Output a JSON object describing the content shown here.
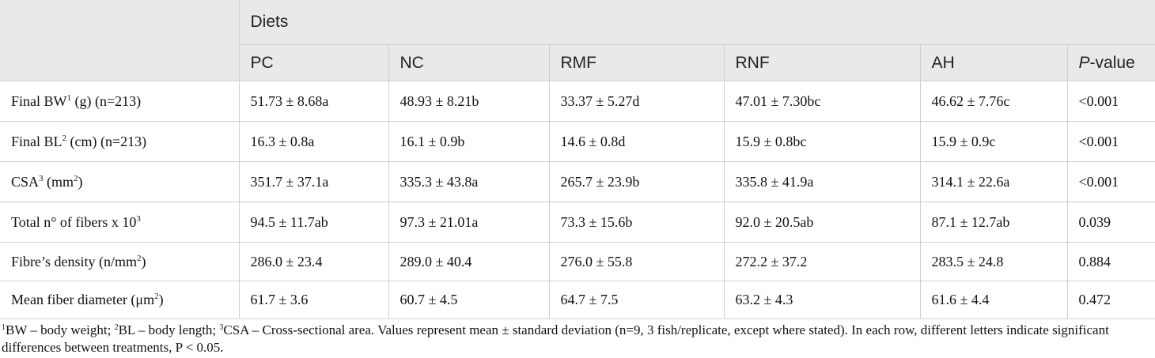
{
  "header": {
    "group_label": "Diets",
    "columns": [
      "PC",
      "NC",
      "RMF",
      "RNF",
      "AH"
    ],
    "pvalue_prefix": "P",
    "pvalue_suffix": "-value"
  },
  "rows": [
    {
      "label_pre": "Final BW",
      "sup": "1",
      "label_post": " (g) (n=213)",
      "values": [
        "51.73 ± 8.68a",
        "48.93 ± 8.21b",
        "33.37 ± 5.27d",
        "47.01 ± 7.30bc",
        "46.62 ± 7.76c",
        "<0.001"
      ]
    },
    {
      "label_pre": "Final BL",
      "sup": "2",
      "label_post": " (cm) (n=213)",
      "values": [
        "16.3 ± 0.8a",
        "16.1 ± 0.9b",
        "14.6 ± 0.8d",
        "15.9 ± 0.8bc",
        "15.9 ± 0.9c",
        "<0.001"
      ]
    },
    {
      "label_pre": "CSA",
      "sup": "3",
      "label_post": " (mm",
      "sup2": "2",
      "label_end": ")",
      "values": [
        "351.7 ± 37.1a",
        "335.3 ± 43.8a",
        "265.7 ± 23.9b",
        "335.8 ± 41.9a",
        "314.1 ± 22.6a",
        "<0.001"
      ]
    },
    {
      "label_pre": "Total n° of fibers x 10",
      "sup": "3",
      "label_post": "",
      "values": [
        "94.5 ± 11.7ab",
        "97.3 ± 21.01a",
        "73.3 ± 15.6b",
        "92.0 ± 20.5ab",
        "87.1 ± 12.7ab",
        "0.039"
      ]
    },
    {
      "label_pre": "Fibre’s density (n/mm",
      "sup": "2",
      "label_post": ")",
      "values": [
        "286.0 ± 23.4",
        "289.0 ± 40.4",
        "276.0 ± 55.8",
        "272.2 ± 37.2",
        "283.5 ± 24.8",
        "0.884"
      ]
    },
    {
      "label_pre": "Mean fiber diameter (μm",
      "sup": "2",
      "label_post": ")",
      "values": [
        "61.7 ± 3.6",
        "60.7 ± 4.5",
        "64.7 ± 7.5",
        "63.2 ± 4.3",
        "61.6 ± 4.4",
        "0.472"
      ]
    }
  ],
  "footnote": {
    "s1": "1",
    "t1": "BW – body weight; ",
    "s2": "2",
    "t2": "BL – body length; ",
    "s3": "3",
    "t3": "CSA – Cross-sectional area. Values represent mean ± standard deviation (n=9, 3 fish/replicate, except where stated). In each row, different letters indicate significant differences between treatments, P < 0.05."
  }
}
